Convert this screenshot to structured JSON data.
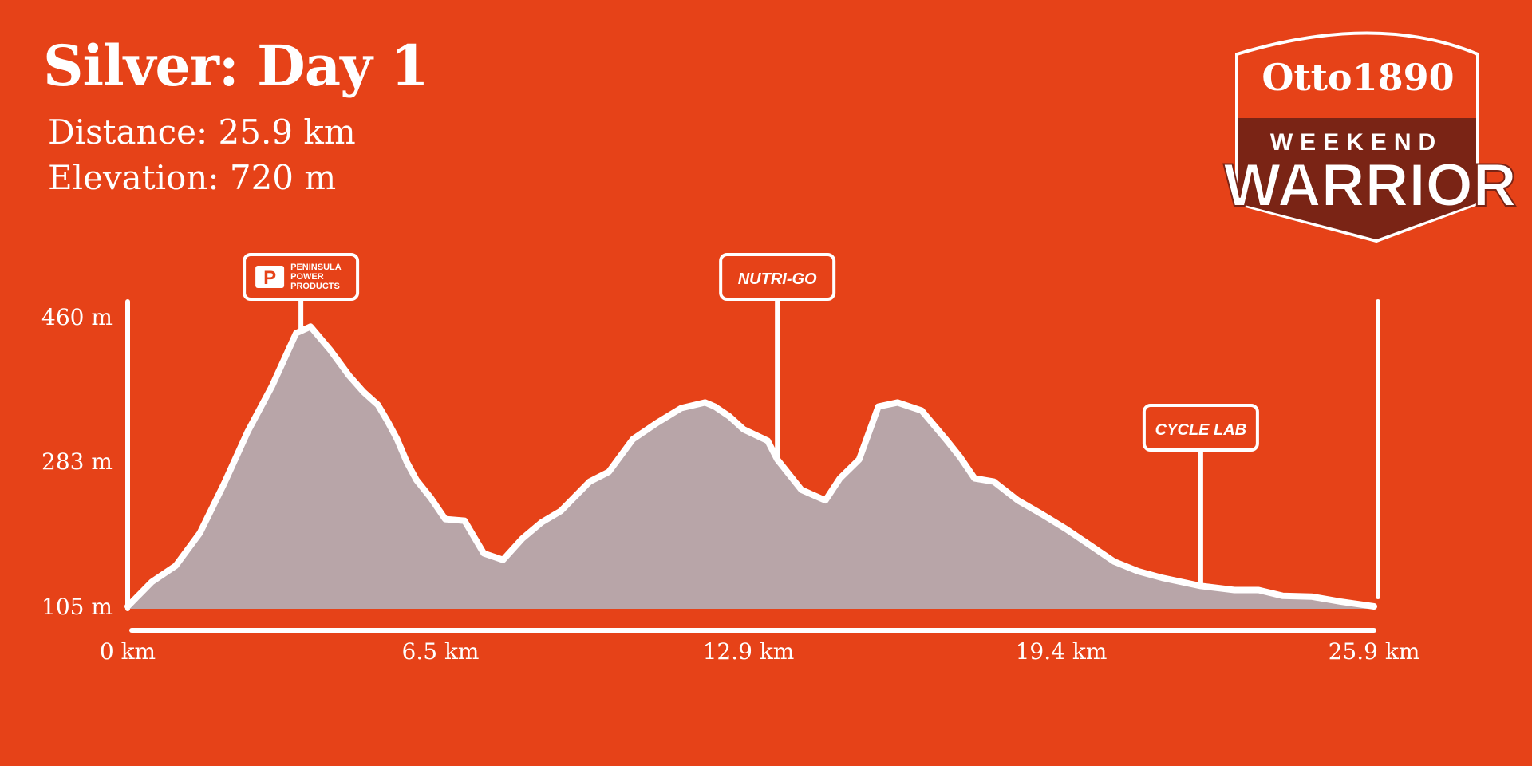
{
  "header": {
    "title": "Silver: Day 1",
    "distance": "Distance: 25.9 km",
    "elevation": "Elevation: 720 m"
  },
  "logo": {
    "brand": "Otto1890",
    "line1": "WEEKEND",
    "line2": "WARRIOR"
  },
  "sponsors": [
    {
      "name": "PENINSULA POWER PRODUCTS",
      "lines": [
        "PENINSULA",
        "POWER",
        "PRODUCTS"
      ],
      "km": 3.6
    },
    {
      "name": "NUTRI-GO",
      "lines": [
        "NUTRI-GO"
      ],
      "km": 13.5
    },
    {
      "name": "CYCLE LAB",
      "lines": [
        "CYCLE LAB"
      ],
      "km": 22.3
    }
  ],
  "colors": {
    "background": "#E64218",
    "line": "#FFFFFF",
    "fill": "#B8A5A8",
    "logo_dark": "#7A2415"
  },
  "chart_data": {
    "type": "area",
    "title": "",
    "xlabel": "",
    "ylabel": "",
    "x_unit": "km",
    "y_unit": "m",
    "xlim": [
      0,
      25.9
    ],
    "ylim": [
      105,
      460
    ],
    "x_tick_labels": [
      "0 km",
      "6.5 km",
      "12.9 km",
      "19.4 km",
      "25.9 km"
    ],
    "x_tick_values": [
      0,
      6.5,
      12.9,
      19.4,
      25.9
    ],
    "y_tick_labels": [
      "460 m",
      "283 m",
      "105 m"
    ],
    "y_tick_values": [
      460,
      283,
      105
    ],
    "series": [
      {
        "x": [
          0,
          0.5,
          1.0,
          1.5,
          2.0,
          2.5,
          3.0,
          3.5,
          3.8,
          4.2,
          4.6,
          4.9,
          5.2,
          5.4,
          5.6,
          5.8,
          6.0,
          6.3,
          6.6,
          7.0,
          7.4,
          7.8,
          8.2,
          8.6,
          9.0,
          9.6,
          10.0,
          10.5,
          11.0,
          11.5,
          12.0,
          12.2,
          12.5,
          12.8,
          13.3,
          13.5,
          14.0,
          14.5,
          14.8,
          15.2,
          15.6,
          16.0,
          16.5,
          17.0,
          17.3,
          17.6,
          18.0,
          18.5,
          19.0,
          19.5,
          20.0,
          20.5,
          21.0,
          21.5,
          22.3,
          23.0,
          23.5,
          24.0,
          24.6,
          25.2,
          25.9
        ],
        "y": [
          105,
          135,
          155,
          195,
          255,
          320,
          375,
          440,
          448,
          420,
          388,
          368,
          352,
          332,
          310,
          282,
          260,
          238,
          212,
          210,
          170,
          162,
          188,
          208,
          222,
          258,
          270,
          310,
          330,
          348,
          355,
          350,
          338,
          322,
          308,
          285,
          248,
          235,
          262,
          285,
          350,
          355,
          345,
          310,
          288,
          262,
          258,
          235,
          218,
          200,
          180,
          160,
          148,
          140,
          130,
          125,
          125,
          118,
          117,
          111,
          105
        ]
      }
    ],
    "grid": false,
    "legend": "none"
  }
}
